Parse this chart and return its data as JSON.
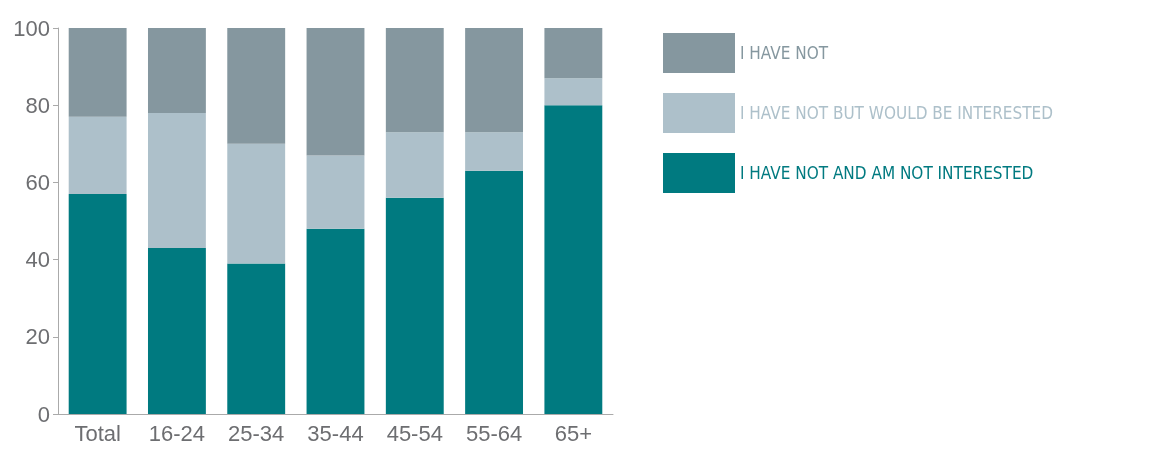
{
  "chart_data": {
    "type": "bar",
    "stacked": true,
    "categories": [
      "Total",
      "16-24",
      "25-34",
      "35-44",
      "45-54",
      "55-64",
      "65+"
    ],
    "series": [
      {
        "name": "I HAVE NOT AND AM NOT INTERESTED",
        "color": "#007a80",
        "values": [
          57,
          43,
          39,
          48,
          56,
          63,
          80
        ]
      },
      {
        "name": "I HAVE NOT BUT WOULD BE INTERESTED",
        "color": "#adc0ca",
        "values": [
          20,
          35,
          31,
          19,
          17,
          10,
          7
        ]
      },
      {
        "name": "I HAVE NOT",
        "color": "#85979f",
        "values": [
          23,
          22,
          30,
          33,
          27,
          27,
          13
        ]
      }
    ],
    "ylim": [
      0,
      100
    ],
    "yticks": [
      0,
      20,
      40,
      60,
      80,
      100
    ],
    "grid": false,
    "legend": "right"
  }
}
